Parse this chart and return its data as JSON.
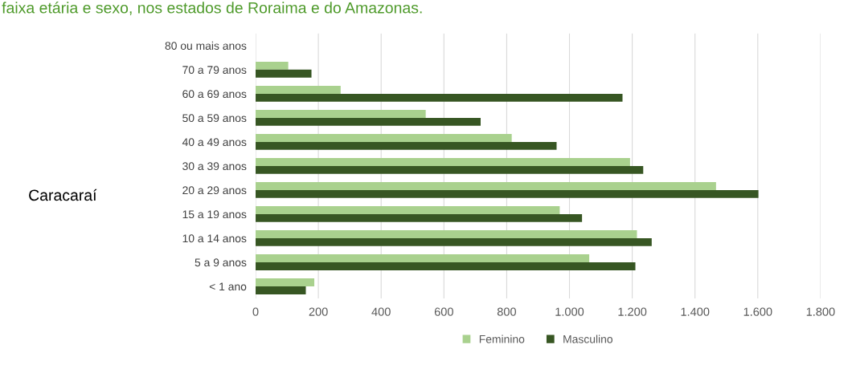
{
  "chart_data": {
    "type": "bar",
    "orientation": "horizontal",
    "title": "faixa etária e sexo, nos estados de Roraima e do Amazonas.",
    "ylabel": "Caracaraí",
    "categories": [
      "80 ou mais anos",
      "70 a 79 anos",
      "60 a 69 anos",
      "50 a 59 anos",
      "40 a 49 anos",
      "30 a 39 anos",
      "20 a 29 anos",
      "15 a 19 anos",
      "10 a 14 anos",
      "5 a 9 anos",
      "< 1 ano"
    ],
    "series": [
      {
        "name": "Feminino",
        "color": "#a9d18e",
        "values": [
          0,
          104,
          271,
          542,
          816,
          1193,
          1467,
          969,
          1215,
          1063,
          187
        ]
      },
      {
        "name": "Masculino",
        "color": "#375623",
        "values": [
          0,
          178,
          1169,
          717,
          959,
          1235,
          1602,
          1040,
          1262,
          1210,
          160
        ]
      }
    ],
    "xlim": [
      0,
      1800
    ],
    "xticks": [
      {
        "value": 0,
        "label": "0"
      },
      {
        "value": 200,
        "label": "200"
      },
      {
        "value": 400,
        "label": "400"
      },
      {
        "value": 600,
        "label": "600"
      },
      {
        "value": 800,
        "label": "800"
      },
      {
        "value": 1000,
        "label": "1.000"
      },
      {
        "value": 1200,
        "label": "1.200"
      },
      {
        "value": 1400,
        "label": "1.400"
      },
      {
        "value": 1600,
        "label": "1.600"
      },
      {
        "value": 1800,
        "label": "1.800"
      }
    ],
    "grid": "x",
    "legend": "bottom"
  }
}
